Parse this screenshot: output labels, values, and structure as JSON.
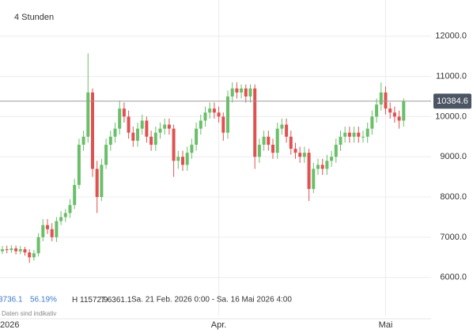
{
  "chart_data": {
    "type": "candlestick",
    "title": "4 Stunden",
    "categories": [
      "2026",
      null,
      null,
      null,
      null,
      null,
      null,
      null,
      null,
      null,
      null,
      null,
      null,
      null,
      null,
      null,
      null,
      null,
      null,
      null,
      null,
      null,
      null,
      null,
      null,
      null,
      null,
      null,
      null,
      null,
      null,
      null,
      null,
      null,
      null,
      null,
      null,
      null,
      null,
      null,
      null,
      null,
      null,
      null,
      null,
      null,
      null,
      null,
      "Apr.",
      null,
      null,
      null,
      null,
      null,
      null,
      null,
      null,
      null,
      null,
      null,
      null,
      null,
      null,
      null,
      null,
      null,
      null,
      null,
      null,
      null,
      null,
      null,
      null,
      null,
      null,
      null,
      null,
      null,
      null,
      null,
      null,
      null,
      null,
      null,
      null,
      "Mai",
      null,
      null,
      null,
      null
    ],
    "open": [
      6650,
      6700,
      6680,
      6720,
      6650,
      6700,
      6620,
      6500,
      6600,
      7000,
      7300,
      7200,
      7000,
      7400,
      7500,
      7600,
      7800,
      8300,
      9300,
      9500,
      10600,
      8700,
      8000,
      8800,
      9300,
      9500,
      9700,
      10200,
      10000,
      9600,
      9400,
      9700,
      9900,
      9500,
      9300,
      9600,
      9700,
      9800,
      9700,
      8900,
      9000,
      8800,
      9100,
      9300,
      9700,
      9900,
      10100,
      10200,
      10100,
      10000,
      9600,
      10500,
      10700,
      10600,
      10700,
      10500,
      10700,
      9000,
      9300,
      9500,
      9300,
      9100,
      9700,
      9800,
      9500,
      9200,
      9100,
      9000,
      9100,
      8200,
      8700,
      8800,
      8700,
      8900,
      9000,
      9300,
      9500,
      9600,
      9500,
      9600,
      9500,
      9500,
      9700,
      10000,
      10300,
      10600,
      10200,
      10100,
      10000,
      9900
    ],
    "high": [
      6780,
      6790,
      6800,
      6790,
      6780,
      6760,
      6700,
      6680,
      7100,
      7450,
      7450,
      7350,
      7500,
      7650,
      7700,
      7950,
      8450,
      9450,
      9650,
      11572.9,
      10700,
      8900,
      8950,
      9450,
      9650,
      9850,
      10400,
      10350,
      10150,
      9750,
      9850,
      10050,
      10000,
      9650,
      9750,
      9850,
      9950,
      9950,
      9800,
      9150,
      9150,
      9250,
      9450,
      9850,
      10050,
      10250,
      10350,
      10350,
      10250,
      10100,
      10650,
      10850,
      10850,
      10800,
      10800,
      10800,
      10800,
      9450,
      9650,
      9650,
      9450,
      9850,
      9950,
      9950,
      9650,
      9350,
      9250,
      9250,
      9200,
      8850,
      8950,
      8950,
      9050,
      9150,
      9450,
      9650,
      9750,
      9750,
      9750,
      9750,
      9650,
      9850,
      10150,
      10450,
      10850,
      10750,
      10350,
      10250,
      10150,
      10450
    ],
    "low": [
      6580,
      6600,
      6610,
      6570,
      6580,
      6540,
      6361.1,
      6420,
      6520,
      6900,
      7080,
      6900,
      6880,
      7300,
      7380,
      7480,
      7700,
      8200,
      9150,
      9350,
      8500,
      7600,
      7900,
      8700,
      9150,
      9350,
      9550,
      9850,
      9450,
      9250,
      9250,
      9550,
      9350,
      9150,
      9150,
      9450,
      9550,
      9550,
      8500,
      8700,
      8650,
      8650,
      8950,
      9150,
      9550,
      9750,
      9950,
      9950,
      9850,
      9400,
      9450,
      10350,
      10450,
      10450,
      10350,
      10350,
      8700,
      8850,
      9150,
      9150,
      8950,
      8950,
      9550,
      9350,
      9050,
      8950,
      8850,
      8850,
      7900,
      8100,
      8550,
      8550,
      8550,
      8750,
      8850,
      9150,
      9350,
      9350,
      9350,
      9350,
      9350,
      9350,
      9550,
      9850,
      10150,
      10050,
      9950,
      9850,
      9700,
      9750
    ],
    "close": [
      6700,
      6680,
      6720,
      6650,
      6700,
      6620,
      6500,
      6600,
      7000,
      7300,
      7200,
      7000,
      7400,
      7500,
      7600,
      7800,
      8300,
      9300,
      9500,
      10600,
      8700,
      8000,
      8800,
      9300,
      9500,
      9700,
      10200,
      10000,
      9600,
      9400,
      9700,
      9900,
      9500,
      9300,
      9600,
      9700,
      9800,
      9700,
      8900,
      9000,
      8800,
      9100,
      9300,
      9700,
      9900,
      10100,
      10200,
      10100,
      10000,
      9600,
      10500,
      10700,
      10600,
      10700,
      10500,
      10700,
      9000,
      9300,
      9500,
      9300,
      9100,
      9700,
      9800,
      9500,
      9200,
      9100,
      9000,
      9100,
      8200,
      8700,
      8800,
      8700,
      8900,
      9000,
      9300,
      9500,
      9600,
      9500,
      9600,
      9500,
      9500,
      9700,
      10000,
      10300,
      10600,
      10200,
      10100,
      10000,
      9900,
      10384.6
    ],
    "up_color": "#6abf69",
    "down_color": "#e05252",
    "ylim": [
      5030,
      12900
    ],
    "yticks": [
      {
        "value": 6000,
        "label": "6000.0"
      },
      {
        "value": 7000,
        "label": "7000.0"
      },
      {
        "value": 8000,
        "label": "8000.0"
      },
      {
        "value": 9000,
        "label": "9000.0"
      },
      {
        "value": 10000,
        "label": "10000.0"
      },
      {
        "value": 11000,
        "label": "11000.0"
      },
      {
        "value": 12000,
        "label": "12000.0"
      }
    ],
    "grid": true,
    "last_price": 10384.6,
    "change": 3736.1,
    "change_pct": {
      "value": 56.19,
      "label": "56.19%"
    },
    "high_prefix": "H",
    "period_high": 11572.9,
    "low_prefix": "T",
    "period_low": 6361.1,
    "period": "Sa. 21 Feb. 2026 0:00 - Sa. 16 Mai 2026 4:00",
    "note": "Daten sind indikativ"
  }
}
